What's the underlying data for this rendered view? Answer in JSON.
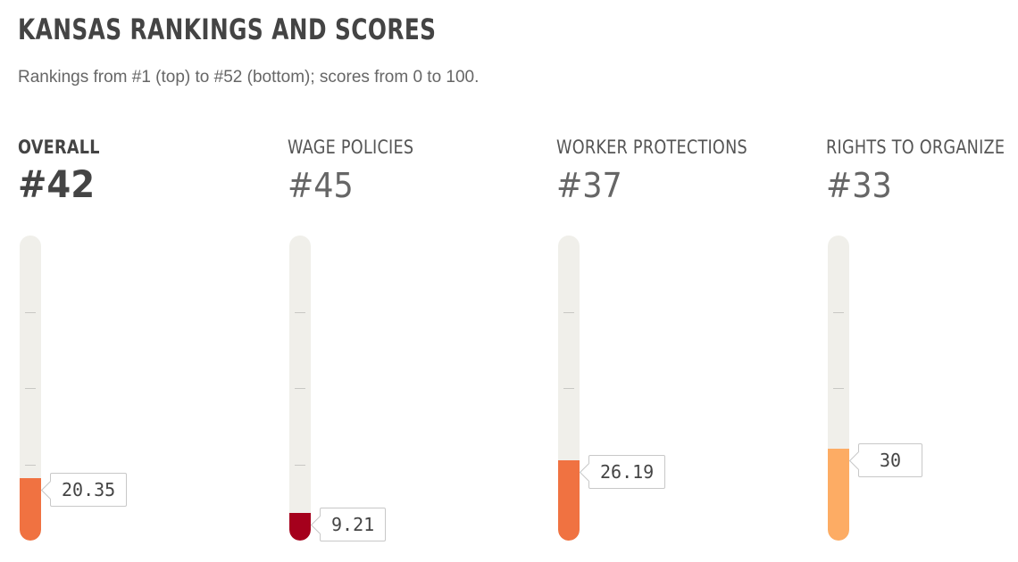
{
  "title": "KANSAS RANKINGS AND SCORES",
  "subtitle": "Rankings from #1 (top) to #52 (bottom); scores from 0 to 100.",
  "chart_data": {
    "type": "bar",
    "title": "KANSAS RANKINGS AND SCORES",
    "subtitle": "Rankings from #1 (top) to #52 (bottom); scores from 0 to 100.",
    "ylim": [
      0,
      100
    ],
    "grid": false,
    "categories": [
      "OVERALL",
      "WAGE POLICIES",
      "WORKER PROTECTIONS",
      "RIGHTS TO ORGANIZE"
    ],
    "series": [
      {
        "values": [
          20.35,
          9.21,
          26.19,
          30
        ],
        "labels": [
          "20.35",
          "9.21",
          "26.19",
          "30"
        ],
        "ranks": [
          "#42",
          "#45",
          "#37",
          "#33"
        ],
        "colors": [
          "#f07241",
          "#a5001c",
          "#f07241",
          "#fdac64"
        ]
      }
    ]
  }
}
